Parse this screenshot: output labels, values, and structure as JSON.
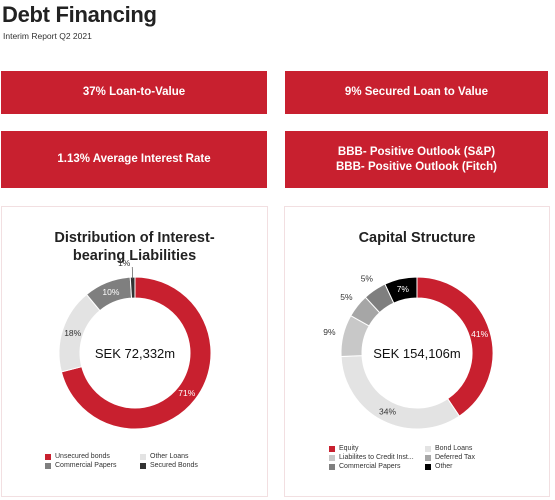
{
  "header": {
    "title": "Debt Financing",
    "subtitle": "Interim Report Q2 2021"
  },
  "kpis": {
    "ltv": "37% Loan-to-Value",
    "secured": "9% Secured Loan to Value",
    "interest": "1.13% Average Interest Rate",
    "rating_line1": "BBB- Positive Outlook (S&P)",
    "rating_line2": "BBB- Positive Outlook (Fitch)"
  },
  "colors": {
    "brand_red": "#c8202f"
  },
  "chart_data": [
    {
      "type": "pie",
      "variant": "donut",
      "title": "Distribution of Interest-bearing Liabilities",
      "title_line1": "Distribution of Interest-",
      "title_line2": "bearing Liabilities",
      "center_label": "SEK 72,332m",
      "legend_position": "bottom",
      "slices": [
        {
          "name": "Unsecured bonds",
          "value": 71,
          "label": "71%",
          "color": "#c8202f"
        },
        {
          "name": "Other Loans",
          "value": 18,
          "label": "18%",
          "color": "#e3e3e3"
        },
        {
          "name": "Commercial Papers",
          "value": 10,
          "label": "10%",
          "color": "#7f7f7f"
        },
        {
          "name": "Secured Bonds",
          "value": 1,
          "label": "1%",
          "color": "#333333"
        }
      ]
    },
    {
      "type": "pie",
      "variant": "donut",
      "title": "Capital Structure",
      "center_label": "SEK 154,106m",
      "legend_position": "bottom",
      "slices": [
        {
          "name": "Equity",
          "value": 41,
          "label": "41%",
          "color": "#c8202f"
        },
        {
          "name": "Bond Loans",
          "value": 34,
          "label": "34%",
          "color": "#e3e3e3"
        },
        {
          "name": "Liabilites to Credit Inst...",
          "value": 9,
          "label": "9%",
          "color": "#c8c8c8"
        },
        {
          "name": "Deferred Tax",
          "value": 5,
          "label": "5%",
          "color": "#a6a6a6"
        },
        {
          "name": "Commercial Papers",
          "value": 5,
          "label": "5%",
          "color": "#7f7f7f"
        },
        {
          "name": "Other",
          "value": 7,
          "label": "7%",
          "color": "#000000"
        }
      ]
    }
  ]
}
